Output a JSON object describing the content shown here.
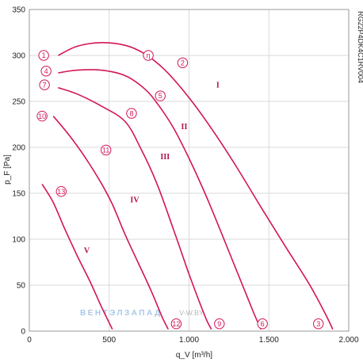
{
  "chart_data": {
    "type": "line",
    "title": "",
    "xlabel": "q_V [m³/h]",
    "ylabel": "p_F [Pa]",
    "xlim": [
      0,
      2000
    ],
    "ylim": [
      0,
      350
    ],
    "x_ticks": [
      0,
      500,
      1000,
      1500,
      2000
    ],
    "x_tick_labels": [
      "0",
      "500",
      "1.000",
      "1.500",
      "2.000"
    ],
    "y_ticks": [
      0,
      50,
      100,
      150,
      200,
      250,
      300,
      350
    ],
    "y_tick_labels": [
      "0",
      "50",
      "100",
      "150",
      "200",
      "250",
      "300",
      "350"
    ],
    "grid": true,
    "model_label": "RG22P4DK4C1RV004",
    "watermark": {
      "brand": "ВЕНТЭЛЗАПАД",
      "site": "V-W.BY"
    },
    "color": "#d4145a",
    "series": [
      {
        "name": "I",
        "x": [
          180,
          300,
          450,
          600,
          720,
          850,
          1000,
          1150,
          1300,
          1450,
          1600,
          1750,
          1850,
          1900
        ],
        "y": [
          300,
          310,
          314,
          311,
          302,
          284,
          254,
          218,
          178,
          135,
          93,
          52,
          20,
          2
        ]
      },
      {
        "name": "II",
        "x": [
          180,
          300,
          450,
          600,
          720,
          800,
          900,
          1000,
          1100,
          1200,
          1300,
          1400,
          1450
        ],
        "y": [
          281,
          284,
          284,
          278,
          264,
          248,
          222,
          188,
          150,
          108,
          65,
          22,
          2
        ]
      },
      {
        "name": "III",
        "x": [
          180,
          300,
          450,
          600,
          700,
          800,
          900,
          950,
          1000,
          1060,
          1110,
          1140
        ],
        "y": [
          265,
          258,
          245,
          228,
          198,
          160,
          112,
          87,
          62,
          34,
          12,
          2
        ]
      },
      {
        "name": "IV",
        "x": [
          150,
          250,
          350,
          450,
          520,
          600,
          680,
          760,
          830,
          870
        ],
        "y": [
          234,
          213,
          189,
          161,
          138,
          105,
          75,
          45,
          16,
          2
        ]
      },
      {
        "name": "V",
        "x": [
          80,
          150,
          220,
          300,
          380,
          450,
          520
        ],
        "y": [
          160,
          140,
          112,
          82,
          54,
          27,
          2
        ]
      }
    ],
    "markers": [
      {
        "label": "1",
        "x": 90,
        "y": 300
      },
      {
        "label": "2",
        "x": 960,
        "y": 292
      },
      {
        "label": "3",
        "x": 1810,
        "y": 8
      },
      {
        "label": "4",
        "x": 105,
        "y": 283
      },
      {
        "label": "5",
        "x": 820,
        "y": 256
      },
      {
        "label": "6",
        "x": 1460,
        "y": 8
      },
      {
        "label": "7",
        "x": 95,
        "y": 268
      },
      {
        "label": "8",
        "x": 640,
        "y": 237
      },
      {
        "label": "9",
        "x": 1190,
        "y": 8
      },
      {
        "label": "10",
        "x": 80,
        "y": 234
      },
      {
        "label": "11",
        "x": 480,
        "y": 197
      },
      {
        "label": "12",
        "x": 920,
        "y": 8
      },
      {
        "label": "13",
        "x": 200,
        "y": 152
      },
      {
        "label": "η",
        "x": 745,
        "y": 300
      }
    ],
    "roman_labels": [
      {
        "label": "I",
        "x": 1180,
        "y": 265
      },
      {
        "label": "II",
        "x": 970,
        "y": 220
      },
      {
        "label": "III",
        "x": 850,
        "y": 187
      },
      {
        "label": "IV",
        "x": 660,
        "y": 140
      },
      {
        "label": "V",
        "x": 360,
        "y": 85
      }
    ]
  }
}
